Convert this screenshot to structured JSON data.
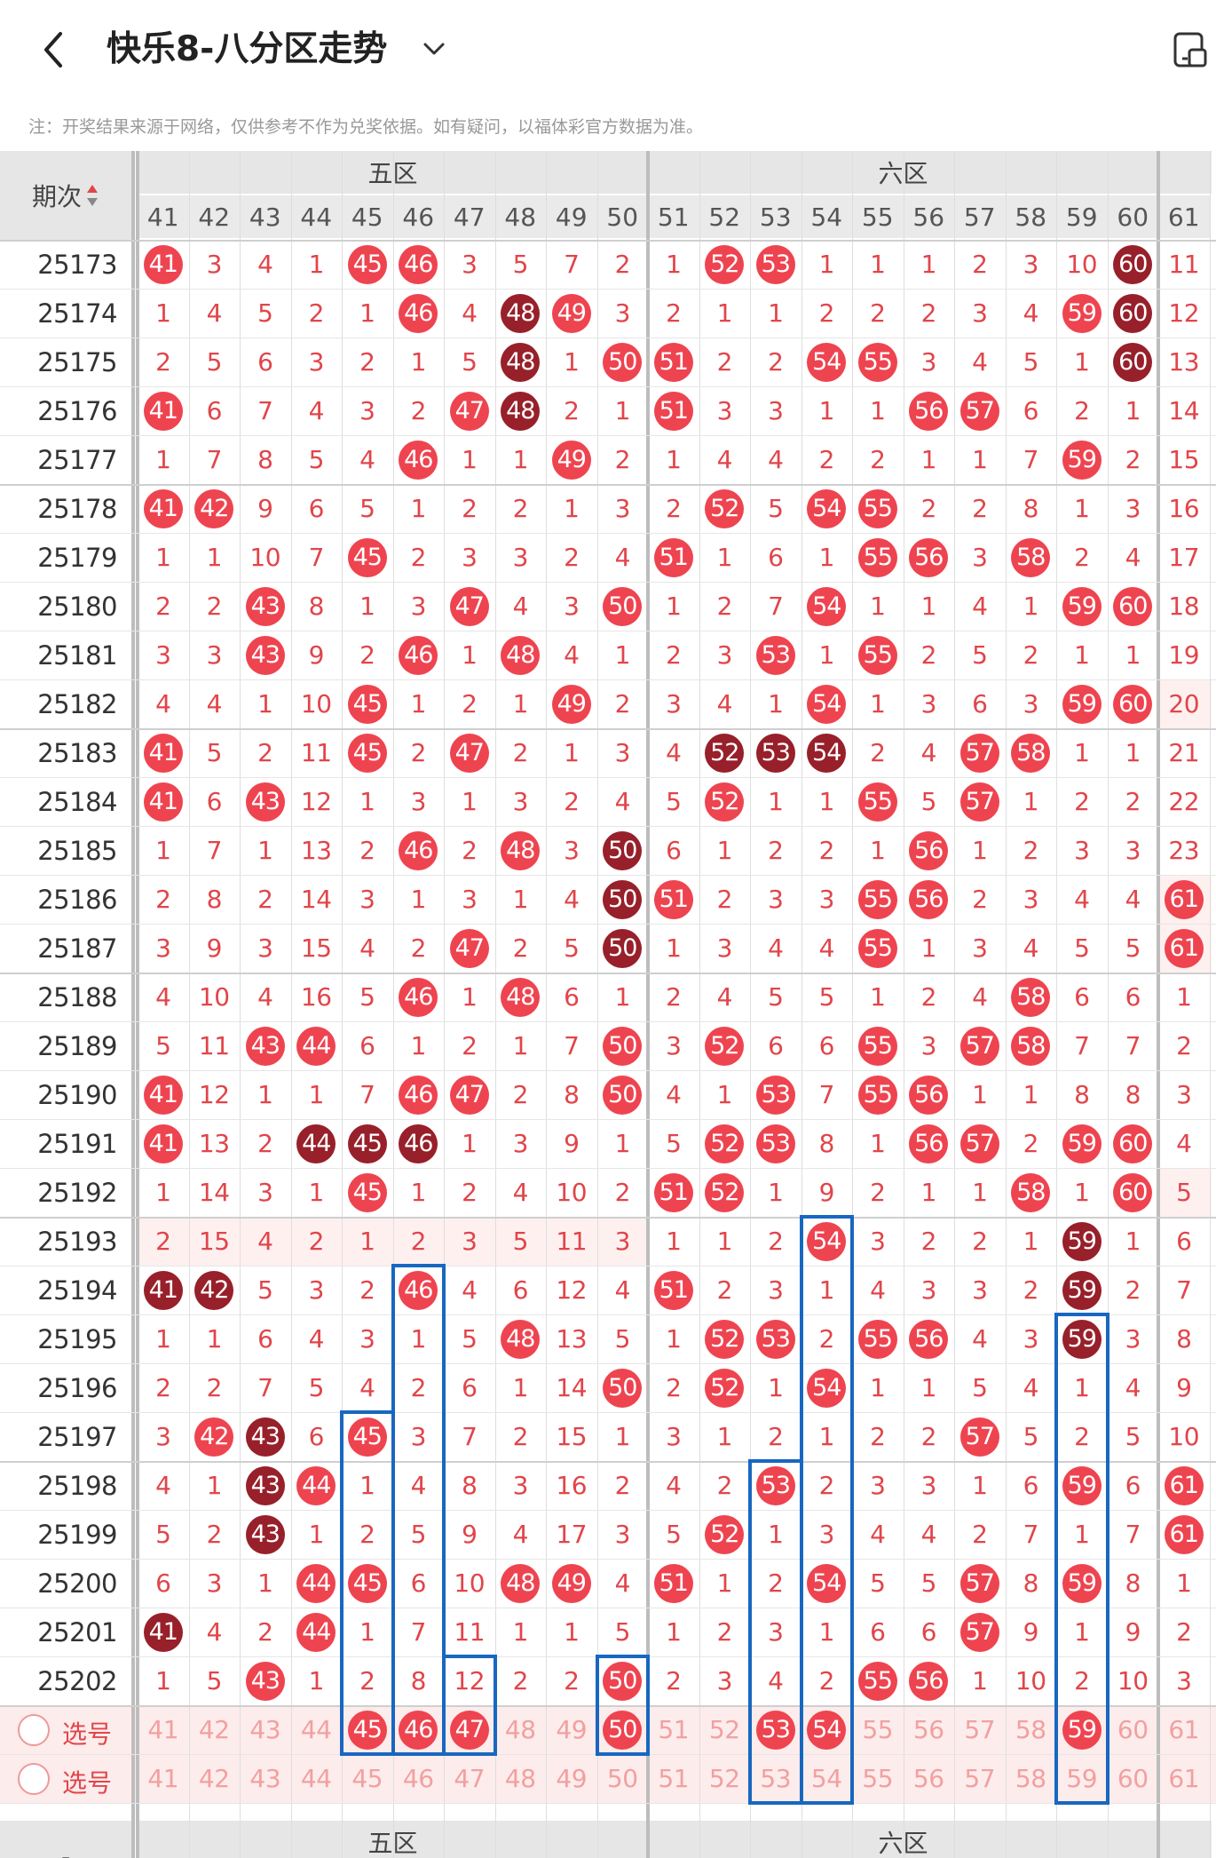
{
  "header": {
    "title": "快乐8-八分区走势",
    "back_icon": "chevron-left-icon",
    "dropdown_icon": "chevron-down-icon",
    "layout_icon": "layout-toggle-icon"
  },
  "note": "注：开奖结果来源于网络，仅供参考不作为兑奖依据。如有疑问，以福体彩官方数据为准。",
  "table": {
    "period_header": "期次",
    "zones": [
      "五区",
      "六区"
    ],
    "columns": [
      41,
      42,
      43,
      44,
      45,
      46,
      47,
      48,
      49,
      50,
      51,
      52,
      53,
      54,
      55,
      56,
      57,
      58,
      59,
      60,
      61
    ],
    "rows": [
      {
        "p": "25173",
        "v": [
          "*41",
          "3",
          "4",
          "1",
          "*45",
          "*46",
          "3",
          "5",
          "7",
          "2",
          "1",
          "*52",
          "*53",
          "1",
          "1",
          "1",
          "2",
          "3",
          "10",
          "#60",
          "11"
        ]
      },
      {
        "p": "25174",
        "v": [
          "1",
          "4",
          "5",
          "2",
          "1",
          "*46",
          "4",
          "#48",
          "*49",
          "3",
          "2",
          "1",
          "1",
          "2",
          "2",
          "2",
          "3",
          "4",
          "*59",
          "#60",
          "12"
        ]
      },
      {
        "p": "25175",
        "v": [
          "2",
          "5",
          "6",
          "3",
          "2",
          "1",
          "5",
          "#48",
          "1",
          "*50",
          "*51",
          "2",
          "2",
          "*54",
          "*55",
          "3",
          "4",
          "5",
          "1",
          "#60",
          "13"
        ]
      },
      {
        "p": "25176",
        "v": [
          "*41",
          "6",
          "7",
          "4",
          "3",
          "2",
          "*47",
          "#48",
          "2",
          "1",
          "*51",
          "3",
          "3",
          "1",
          "1",
          "*56",
          "*57",
          "6",
          "2",
          "1",
          "14"
        ]
      },
      {
        "p": "25177",
        "v": [
          "1",
          "7",
          "8",
          "5",
          "4",
          "*46",
          "1",
          "1",
          "*49",
          "2",
          "1",
          "4",
          "4",
          "2",
          "2",
          "1",
          "1",
          "7",
          "*59",
          "2",
          "15"
        ]
      },
      {
        "p": "25178",
        "v": [
          "*41",
          "*42",
          "9",
          "6",
          "5",
          "1",
          "2",
          "2",
          "1",
          "3",
          "2",
          "*52",
          "5",
          "*54",
          "*55",
          "2",
          "2",
          "8",
          "1",
          "3",
          "16"
        ]
      },
      {
        "p": "25179",
        "v": [
          "1",
          "1",
          "10",
          "7",
          "*45",
          "2",
          "3",
          "3",
          "2",
          "4",
          "*51",
          "1",
          "6",
          "1",
          "*55",
          "*56",
          "3",
          "*58",
          "2",
          "4",
          "17"
        ]
      },
      {
        "p": "25180",
        "v": [
          "2",
          "2",
          "*43",
          "8",
          "1",
          "3",
          "*47",
          "4",
          "3",
          "*50",
          "1",
          "2",
          "7",
          "*54",
          "1",
          "1",
          "4",
          "1",
          "*59",
          "*60",
          "18"
        ]
      },
      {
        "p": "25181",
        "v": [
          "3",
          "3",
          "*43",
          "9",
          "2",
          "*46",
          "1",
          "*48",
          "4",
          "1",
          "2",
          "3",
          "*53",
          "1",
          "*55",
          "2",
          "5",
          "2",
          "1",
          "1",
          "19"
        ]
      },
      {
        "p": "25182",
        "v": [
          "4",
          "4",
          "1",
          "10",
          "*45",
          "1",
          "2",
          "1",
          "*49",
          "2",
          "3",
          "4",
          "1",
          "*54",
          "1",
          "3",
          "6",
          "3",
          "*59",
          "*60",
          "20"
        ]
      },
      {
        "p": "25183",
        "v": [
          "*41",
          "5",
          "2",
          "11",
          "*45",
          "2",
          "*47",
          "2",
          "1",
          "3",
          "4",
          "#52",
          "#53",
          "#54",
          "2",
          "4",
          "*57",
          "*58",
          "1",
          "1",
          "21"
        ]
      },
      {
        "p": "25184",
        "v": [
          "*41",
          "6",
          "*43",
          "12",
          "1",
          "3",
          "1",
          "3",
          "2",
          "4",
          "5",
          "*52",
          "1",
          "1",
          "*55",
          "5",
          "*57",
          "1",
          "2",
          "2",
          "22"
        ]
      },
      {
        "p": "25185",
        "v": [
          "1",
          "7",
          "1",
          "13",
          "2",
          "*46",
          "2",
          "*48",
          "3",
          "#50",
          "6",
          "1",
          "2",
          "2",
          "1",
          "*56",
          "1",
          "2",
          "3",
          "3",
          "23"
        ]
      },
      {
        "p": "25186",
        "v": [
          "2",
          "8",
          "2",
          "14",
          "3",
          "1",
          "3",
          "1",
          "4",
          "#50",
          "*51",
          "2",
          "3",
          "3",
          "*55",
          "*56",
          "2",
          "3",
          "4",
          "4",
          "*61"
        ]
      },
      {
        "p": "25187",
        "v": [
          "3",
          "9",
          "3",
          "15",
          "4",
          "2",
          "*47",
          "2",
          "5",
          "#50",
          "1",
          "3",
          "4",
          "4",
          "*55",
          "1",
          "3",
          "4",
          "5",
          "5",
          "*61"
        ]
      },
      {
        "p": "25188",
        "v": [
          "4",
          "10",
          "4",
          "16",
          "5",
          "*46",
          "1",
          "*48",
          "6",
          "1",
          "2",
          "4",
          "5",
          "5",
          "1",
          "2",
          "4",
          "*58",
          "6",
          "6",
          "1"
        ]
      },
      {
        "p": "25189",
        "v": [
          "5",
          "11",
          "*43",
          "*44",
          "6",
          "1",
          "2",
          "1",
          "7",
          "*50",
          "3",
          "*52",
          "6",
          "6",
          "*55",
          "3",
          "*57",
          "*58",
          "7",
          "7",
          "2"
        ]
      },
      {
        "p": "25190",
        "v": [
          "*41",
          "12",
          "1",
          "1",
          "7",
          "*46",
          "*47",
          "2",
          "8",
          "*50",
          "4",
          "1",
          "*53",
          "7",
          "*55",
          "*56",
          "1",
          "1",
          "8",
          "8",
          "3"
        ]
      },
      {
        "p": "25191",
        "v": [
          "*41",
          "13",
          "2",
          "#44",
          "#45",
          "#46",
          "1",
          "3",
          "9",
          "1",
          "5",
          "*52",
          "*53",
          "8",
          "1",
          "*56",
          "*57",
          "2",
          "*59",
          "*60",
          "4"
        ]
      },
      {
        "p": "25192",
        "v": [
          "1",
          "14",
          "3",
          "1",
          "*45",
          "1",
          "2",
          "4",
          "10",
          "2",
          "*51",
          "*52",
          "1",
          "9",
          "2",
          "1",
          "1",
          "*58",
          "1",
          "*60",
          "5"
        ]
      },
      {
        "p": "25193",
        "v": [
          "2",
          "15",
          "4",
          "2",
          "1",
          "2",
          "3",
          "5",
          "11",
          "3",
          "1",
          "1",
          "2",
          "*54",
          "3",
          "2",
          "2",
          "1",
          "#59",
          "1",
          "6"
        ]
      },
      {
        "p": "25194",
        "v": [
          "#41",
          "#42",
          "5",
          "3",
          "2",
          "*46",
          "4",
          "6",
          "12",
          "4",
          "*51",
          "2",
          "3",
          "1",
          "4",
          "3",
          "3",
          "2",
          "#59",
          "2",
          "7"
        ]
      },
      {
        "p": "25195",
        "v": [
          "1",
          "1",
          "6",
          "4",
          "3",
          "1",
          "5",
          "*48",
          "13",
          "5",
          "1",
          "*52",
          "*53",
          "2",
          "*55",
          "*56",
          "4",
          "3",
          "#59",
          "3",
          "8"
        ]
      },
      {
        "p": "25196",
        "v": [
          "2",
          "2",
          "7",
          "5",
          "4",
          "2",
          "6",
          "1",
          "14",
          "*50",
          "2",
          "*52",
          "1",
          "*54",
          "1",
          "1",
          "5",
          "4",
          "1",
          "4",
          "9"
        ]
      },
      {
        "p": "25197",
        "v": [
          "3",
          "*42",
          "#43",
          "6",
          "*45",
          "3",
          "7",
          "2",
          "15",
          "1",
          "3",
          "1",
          "2",
          "1",
          "2",
          "2",
          "*57",
          "5",
          "2",
          "5",
          "10"
        ]
      },
      {
        "p": "25198",
        "v": [
          "4",
          "1",
          "#43",
          "*44",
          "1",
          "4",
          "8",
          "3",
          "16",
          "2",
          "4",
          "2",
          "*53",
          "2",
          "3",
          "3",
          "1",
          "6",
          "*59",
          "6",
          "*61"
        ]
      },
      {
        "p": "25199",
        "v": [
          "5",
          "2",
          "#43",
          "1",
          "2",
          "5",
          "9",
          "4",
          "17",
          "3",
          "5",
          "*52",
          "1",
          "3",
          "4",
          "4",
          "2",
          "7",
          "1",
          "7",
          "*61"
        ]
      },
      {
        "p": "25200",
        "v": [
          "6",
          "3",
          "1",
          "*44",
          "*45",
          "6",
          "10",
          "*48",
          "*49",
          "4",
          "*51",
          "1",
          "2",
          "*54",
          "5",
          "5",
          "*57",
          "8",
          "*59",
          "8",
          "1"
        ]
      },
      {
        "p": "25201",
        "v": [
          "#41",
          "4",
          "2",
          "*44",
          "1",
          "7",
          "11",
          "1",
          "1",
          "5",
          "1",
          "2",
          "3",
          "1",
          "6",
          "6",
          "*57",
          "9",
          "1",
          "9",
          "2"
        ]
      },
      {
        "p": "25202",
        "v": [
          "1",
          "5",
          "*43",
          "1",
          "2",
          "8",
          "12",
          "2",
          "2",
          "*50",
          "2",
          "3",
          "4",
          "2",
          "*55",
          "*56",
          "1",
          "10",
          "2",
          "10",
          "3"
        ]
      }
    ],
    "pick_rows": [
      {
        "label": "选号",
        "v": [
          "41",
          "42",
          "43",
          "44",
          "*45",
          "*46",
          "*47",
          "48",
          "49",
          "*50",
          "51",
          "52",
          "*53",
          "*54",
          "55",
          "56",
          "57",
          "58",
          "*59",
          "60",
          "61"
        ]
      },
      {
        "label": "选号",
        "v": [
          "41",
          "42",
          "43",
          "44",
          "45",
          "46",
          "47",
          "48",
          "49",
          "50",
          "51",
          "52",
          "53",
          "54",
          "55",
          "56",
          "57",
          "58",
          "59",
          "60",
          "61"
        ]
      }
    ],
    "footer_period": "-"
  }
}
